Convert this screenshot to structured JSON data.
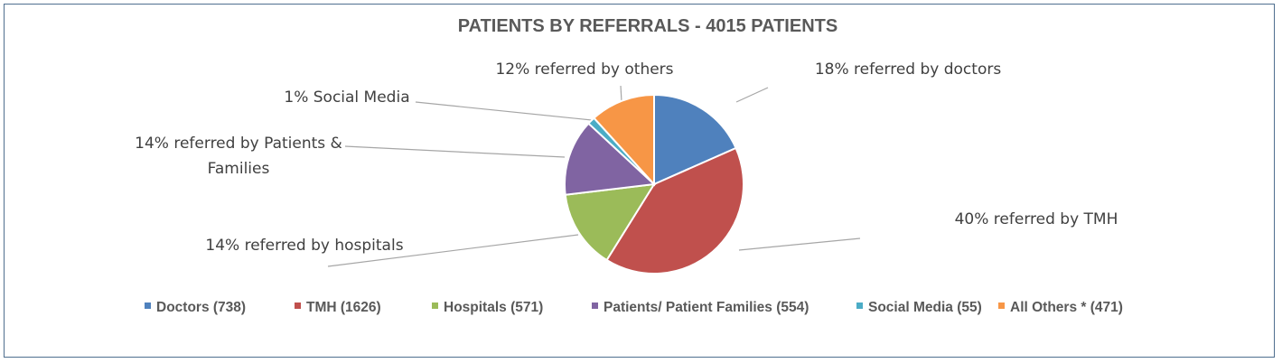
{
  "chart_data": {
    "type": "pie",
    "title": "PATIENTS BY REFERRALS - 4015 PATIENTS",
    "slices": [
      {
        "key": "doctors",
        "legend": "Doctors (738)",
        "value": 738,
        "label_lines": [
          "18% referred by doctors"
        ],
        "color": "#4f81bd"
      },
      {
        "key": "tmh",
        "legend": "TMH (1626)",
        "value": 1626,
        "label_lines": [
          "40% referred by TMH"
        ],
        "color": "#c0504d"
      },
      {
        "key": "hospitals",
        "legend": "Hospitals (571)",
        "value": 571,
        "label_lines": [
          "14% referred by hospitals"
        ],
        "color": "#9bbb59"
      },
      {
        "key": "patients",
        "legend": "Patients/ Patient Families (554)",
        "value": 554,
        "label_lines": [
          "14% referred by Patients &",
          "Families"
        ],
        "color": "#8064a2"
      },
      {
        "key": "social",
        "legend": "Social Media  (55)",
        "value": 55,
        "label_lines": [
          "1% Social Media"
        ],
        "color": "#4bacc6"
      },
      {
        "key": "others",
        "legend": "All Others * (471)",
        "value": 471,
        "label_lines": [
          "12% referred by others"
        ],
        "color": "#f79646"
      }
    ],
    "legend_position": "bottom"
  }
}
